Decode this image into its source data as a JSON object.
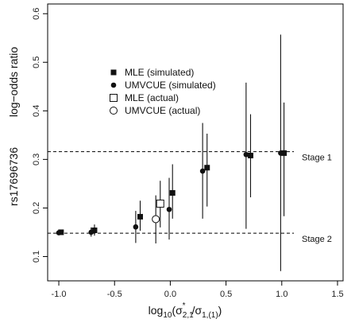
{
  "chart_data": {
    "type": "scatter",
    "xlim": [
      -1.1,
      1.55
    ],
    "ylim": [
      0.05,
      0.62
    ],
    "x_ticks": [
      -1.0,
      -0.5,
      0.0,
      0.5,
      1.0,
      1.5
    ],
    "x_tick_labels": [
      "-1.0",
      "-0.5",
      "0.0",
      "0.5",
      "1.0",
      "1.5"
    ],
    "y_ticks": [
      0.1,
      0.2,
      0.3,
      0.4,
      0.5,
      0.6
    ],
    "y_tick_labels": [
      "0.1",
      "0.2",
      "0.3",
      "0.4",
      "0.5",
      "0.6"
    ],
    "xlabel_main": "log",
    "xlabel_sub": "10",
    "xlabel_rest": "(σ",
    "xlabel_sub2": "2,1",
    "xlabel_star": "*",
    "xlabel_mid": "/σ",
    "xlabel_sub3": "1,(1)",
    "xlabel_end": ")",
    "ylabel_top": "log−odds ratio",
    "ylabel_bottom": "rs17696736",
    "grid": false,
    "legend_position": "upper-left",
    "series": [
      {
        "name": "MLE (simulated)",
        "marker": "filled-square",
        "points": [
          {
            "x": -0.98,
            "y": 0.15,
            "lo": 0.145,
            "hi": 0.155
          },
          {
            "x": -0.68,
            "y": 0.154,
            "lo": 0.143,
            "hi": 0.166
          },
          {
            "x": -0.27,
            "y": 0.182,
            "lo": 0.153,
            "hi": 0.215
          },
          {
            "x": 0.02,
            "y": 0.231,
            "lo": 0.178,
            "hi": 0.29
          },
          {
            "x": 0.33,
            "y": 0.283,
            "lo": 0.203,
            "hi": 0.353
          },
          {
            "x": 0.72,
            "y": 0.308,
            "lo": 0.222,
            "hi": 0.393
          },
          {
            "x": 1.02,
            "y": 0.313,
            "lo": 0.183,
            "hi": 0.417
          }
        ]
      },
      {
        "name": "UMVCUE (simulated)",
        "marker": "filled-circle",
        "points": [
          {
            "x": -1.0,
            "y": 0.149,
            "lo": 0.144,
            "hi": 0.154
          },
          {
            "x": -0.71,
            "y": 0.15,
            "lo": 0.141,
            "hi": 0.16
          },
          {
            "x": -0.31,
            "y": 0.161,
            "lo": 0.128,
            "hi": 0.194
          },
          {
            "x": -0.01,
            "y": 0.197,
            "lo": 0.135,
            "hi": 0.262
          },
          {
            "x": 0.29,
            "y": 0.276,
            "lo": 0.178,
            "hi": 0.375
          },
          {
            "x": 0.68,
            "y": 0.31,
            "lo": 0.157,
            "hi": 0.458
          },
          {
            "x": 0.99,
            "y": 0.313,
            "lo": 0.07,
            "hi": 0.557
          }
        ]
      },
      {
        "name": "MLE (actual)",
        "marker": "open-square",
        "points": [
          {
            "x": -0.09,
            "y": 0.209,
            "lo": 0.16,
            "hi": 0.256
          }
        ]
      },
      {
        "name": "UMVCUE (actual)",
        "marker": "open-circle",
        "points": [
          {
            "x": -0.13,
            "y": 0.177,
            "lo": 0.127,
            "hi": 0.226
          }
        ]
      }
    ],
    "reference_lines": [
      {
        "y": 0.316,
        "label": "Stage 1"
      },
      {
        "y": 0.148,
        "label": "Stage 2"
      }
    ]
  }
}
